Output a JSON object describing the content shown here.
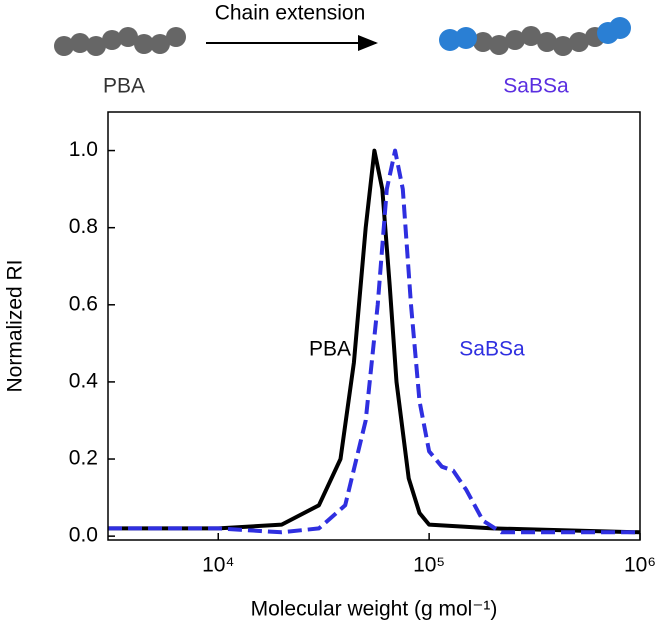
{
  "scheme": {
    "arrow_label": "Chain extension",
    "left_label": "PBA",
    "right_label": "SaBSa"
  },
  "chart_data": {
    "type": "line",
    "x_label": "Molecular weight (g mol⁻¹)",
    "y_label": "Normalized RI",
    "xscale": "log",
    "xlim": [
      3000,
      1000000
    ],
    "xticks": [
      {
        "value": 10000,
        "label": "10⁴"
      },
      {
        "value": 100000,
        "label": "10⁵"
      },
      {
        "value": 1000000,
        "label": "10⁶"
      }
    ],
    "ylim": [
      -0.01,
      1.1
    ],
    "yticks": [
      {
        "value": 0,
        "label": "0.0"
      },
      0.2,
      0.4,
      0.6,
      0.8,
      {
        "value": 1,
        "label": "1.0"
      }
    ],
    "annotations": [
      "PBA",
      "SaBSa"
    ],
    "series": [
      {
        "name": "PBA",
        "color": "#000000",
        "dash": "solid",
        "x": [
          3000,
          10000,
          20000,
          30000,
          38000,
          44000,
          50000,
          55000,
          60000,
          65000,
          70000,
          80000,
          90000,
          100000,
          200000,
          1000000
        ],
        "values": [
          0.02,
          0.02,
          0.03,
          0.08,
          0.2,
          0.45,
          0.8,
          1.0,
          0.9,
          0.65,
          0.4,
          0.15,
          0.06,
          0.03,
          0.02,
          0.01
        ]
      },
      {
        "name": "SaBSa",
        "color": "#2f2fe0",
        "dash": "dashed",
        "x": [
          3000,
          10000,
          20000,
          30000,
          40000,
          50000,
          57000,
          63000,
          69000,
          75000,
          82000,
          90000,
          100000,
          115000,
          130000,
          150000,
          180000,
          220000,
          1000000
        ],
        "values": [
          0.02,
          0.02,
          0.01,
          0.02,
          0.08,
          0.3,
          0.6,
          0.9,
          1.0,
          0.9,
          0.6,
          0.35,
          0.22,
          0.18,
          0.17,
          0.12,
          0.04,
          0.01,
          0.01
        ]
      }
    ]
  }
}
